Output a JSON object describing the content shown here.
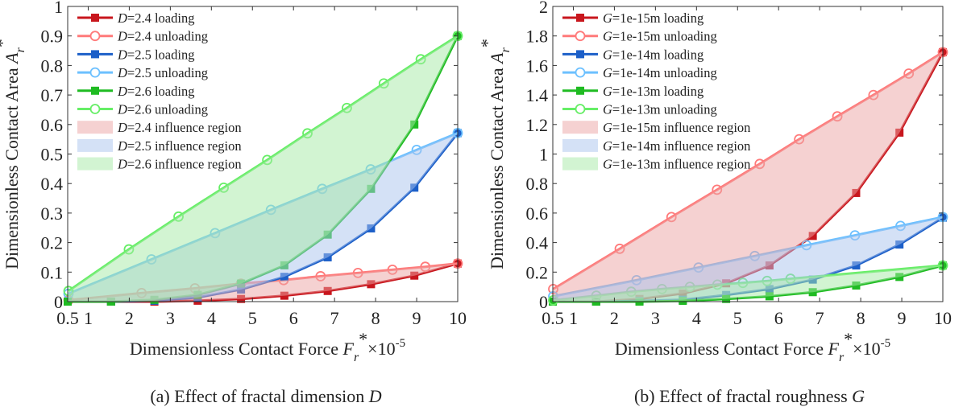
{
  "chart_data": [
    {
      "type": "line",
      "caption": {
        "prefix": "(a) Effect of fractal dimension ",
        "var": "D"
      },
      "xlabel": {
        "text": "Dimensionless Contact Force ",
        "sym": "F",
        "sub": "r",
        "sup": "*",
        "suffix": "×10",
        "exp": "-5"
      },
      "ylabel": {
        "text": "Dimensionless Contact Area ",
        "sym": "A",
        "sub": "r",
        "sup": "*"
      },
      "xlim": [
        0.5,
        10
      ],
      "ylim": [
        0,
        1
      ],
      "xticks": [
        "0.5",
        "1",
        "2",
        "3",
        "4",
        "5",
        "6",
        "7",
        "8",
        "9",
        "10"
      ],
      "yticks": [
        "0",
        "0.1",
        "0.2",
        "0.3",
        "0.4",
        "0.5",
        "0.6",
        "0.7",
        "0.8",
        "0.9",
        "1"
      ],
      "legend_position": "top-left",
      "series": [
        {
          "var": "D",
          "label": "=2.4 loading",
          "color": "#c8161d",
          "marker": "square",
          "x": [
            0.5,
            1.556,
            2.611,
            3.667,
            4.722,
            5.778,
            6.833,
            7.889,
            8.944,
            10
          ],
          "y": [
            0,
            0,
            0,
            0.003,
            0.009,
            0.02,
            0.036,
            0.059,
            0.088,
            0.129
          ]
        },
        {
          "var": "D",
          "label": "=2.4 unloading",
          "color": "#ff7a7a",
          "marker": "circle",
          "x": [
            0.52,
            2.3,
            3.6,
            4.72,
            5.76,
            6.66,
            7.57,
            8.41,
            9.21,
            10
          ],
          "y": [
            0.005,
            0.029,
            0.045,
            0.061,
            0.073,
            0.086,
            0.097,
            0.108,
            0.118,
            0.129
          ]
        },
        {
          "var": "D",
          "label": "=2.5 loading",
          "color": "#1c5fc8",
          "marker": "square",
          "x": [
            0.5,
            1.556,
            2.611,
            3.667,
            4.722,
            5.778,
            6.833,
            7.889,
            8.944,
            10
          ],
          "y": [
            0,
            0,
            0.003,
            0.014,
            0.041,
            0.084,
            0.15,
            0.248,
            0.386,
            0.571
          ]
        },
        {
          "var": "D",
          "label": "=2.5 unloading",
          "color": "#6cc0ff",
          "marker": "circle",
          "x": [
            0.52,
            2.54,
            4.09,
            5.45,
            6.7,
            7.88,
            9.0,
            10
          ],
          "y": [
            0.027,
            0.143,
            0.232,
            0.311,
            0.382,
            0.448,
            0.514,
            0.571
          ]
        },
        {
          "var": "D",
          "label": "=2.6 loading",
          "color": "#1fbb22",
          "marker": "square",
          "x": [
            0.5,
            1.556,
            2.611,
            3.667,
            4.722,
            5.778,
            6.833,
            7.889,
            8.944,
            10
          ],
          "y": [
            0,
            0,
            0.006,
            0.023,
            0.061,
            0.123,
            0.227,
            0.382,
            0.6,
            0.9
          ]
        },
        {
          "var": "D",
          "label": "=2.6 unloading",
          "color": "#66ee66",
          "marker": "circle",
          "x": [
            0.52,
            1.99,
            3.2,
            4.3,
            5.36,
            6.34,
            7.3,
            8.2,
            9.1,
            10
          ],
          "y": [
            0.036,
            0.177,
            0.288,
            0.386,
            0.48,
            0.57,
            0.656,
            0.739,
            0.821,
            0.9
          ]
        }
      ],
      "regions": [
        {
          "var": "D",
          "label": "=2.4 influence region",
          "color": "#eba3a3",
          "between": [
            0,
            1
          ]
        },
        {
          "var": "D",
          "label": "=2.5 influence region",
          "color": "#a9c4ee",
          "between": [
            2,
            3
          ]
        },
        {
          "var": "D",
          "label": "=2.6 influence region",
          "color": "#a6eaa6",
          "between": [
            4,
            5
          ]
        }
      ]
    },
    {
      "type": "line",
      "caption": {
        "prefix": "(b) Effect of fractal roughness ",
        "var": "G"
      },
      "xlabel": {
        "text": "Dimensionless Contact Force ",
        "sym": "F",
        "sub": "r",
        "sup": "*",
        "suffix": "×10",
        "exp": "-5"
      },
      "ylabel": {
        "text": "Dimensionless Contact Area ",
        "sym": "A",
        "sub": "r",
        "sup": "*"
      },
      "xlim": [
        0.5,
        10
      ],
      "ylim": [
        0,
        2
      ],
      "xticks": [
        "0.5",
        "1",
        "2",
        "3",
        "4",
        "5",
        "6",
        "7",
        "8",
        "9",
        "10"
      ],
      "yticks": [
        "0",
        "0.2",
        "0.4",
        "0.6",
        "0.8",
        "1",
        "1.2",
        "1.4",
        "1.6",
        "1.8",
        "2"
      ],
      "legend_position": "top-left",
      "series": [
        {
          "var": "G",
          "label": "=1e-15m loading",
          "color": "#c8161d",
          "marker": "square",
          "x": [
            0.5,
            1.556,
            2.611,
            3.667,
            4.722,
            5.778,
            6.833,
            7.889,
            8.944,
            10
          ],
          "y": [
            0,
            0,
            0.018,
            0.055,
            0.124,
            0.245,
            0.445,
            0.736,
            1.145,
            1.69
          ]
        },
        {
          "var": "G",
          "label": "=1e-15m unloading",
          "color": "#ff7a7a",
          "marker": "circle",
          "x": [
            0.51,
            2.13,
            3.39,
            4.5,
            5.54,
            6.5,
            7.43,
            8.31,
            9.17,
            10
          ],
          "y": [
            0.085,
            0.358,
            0.573,
            0.758,
            0.933,
            1.1,
            1.255,
            1.4,
            1.545,
            1.69
          ]
        },
        {
          "var": "G",
          "label": "=1e-14m loading",
          "color": "#1c5fc8",
          "marker": "square",
          "x": [
            0.5,
            1.556,
            2.611,
            3.667,
            4.722,
            5.778,
            6.833,
            7.889,
            8.944,
            10
          ],
          "y": [
            0,
            0,
            0.005,
            0.013,
            0.045,
            0.085,
            0.149,
            0.245,
            0.387,
            0.569
          ]
        },
        {
          "var": "G",
          "label": "=1e-14m unloading",
          "color": "#6cc0ff",
          "marker": "circle",
          "x": [
            0.51,
            2.54,
            4.05,
            5.42,
            6.68,
            7.86,
            8.97,
            10
          ],
          "y": [
            0.036,
            0.145,
            0.231,
            0.309,
            0.382,
            0.449,
            0.513,
            0.573
          ]
        },
        {
          "var": "G",
          "label": "=1e-13m loading",
          "color": "#1fbb22",
          "marker": "square",
          "x": [
            0.5,
            1.556,
            2.611,
            3.667,
            4.722,
            5.778,
            6.833,
            7.889,
            8.944,
            10
          ],
          "y": [
            0,
            0,
            0,
            0.005,
            0.018,
            0.036,
            0.064,
            0.109,
            0.167,
            0.245
          ]
        },
        {
          "var": "G",
          "label": "=1e-13m unloading",
          "color": "#66ee66",
          "marker": "circle",
          "x": [
            0.51,
            1.56,
            2.41,
            3.16,
            3.84,
            4.51,
            5.13,
            5.72,
            6.29,
            10
          ],
          "y": [
            0.009,
            0.04,
            0.067,
            0.085,
            0.1,
            0.115,
            0.127,
            0.14,
            0.155,
            0.245
          ]
        }
      ],
      "regions": [
        {
          "var": "G",
          "label": "=1e-15m influence region",
          "color": "#eba3a3",
          "between": [
            0,
            1
          ]
        },
        {
          "var": "G",
          "label": "=1e-14m influence region",
          "color": "#a9c4ee",
          "between": [
            2,
            3
          ]
        },
        {
          "var": "G",
          "label": "=1e-13m influence region",
          "color": "#a6eaa6",
          "between": [
            4,
            5
          ]
        }
      ]
    }
  ]
}
